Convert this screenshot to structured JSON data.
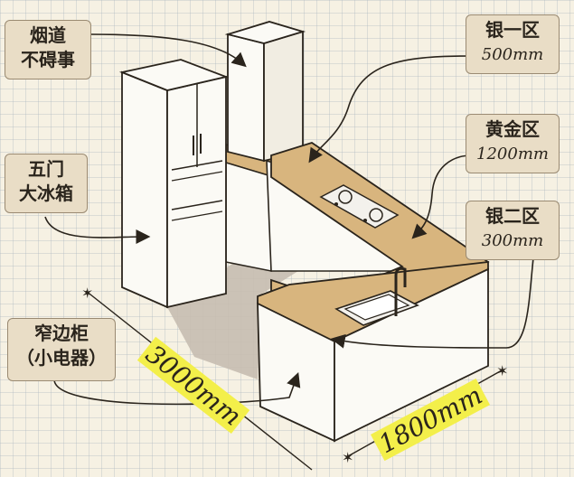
{
  "labels": {
    "chimney": {
      "line1": "烟道",
      "line2": "不碍事"
    },
    "fridge": {
      "line1": "五门",
      "line2": "大冰箱"
    },
    "cabinet": {
      "line1": "窄边柜",
      "line2": "（小电器）"
    },
    "silver1": {
      "title": "银一区",
      "value": "500mm"
    },
    "gold": {
      "title": "黄金区",
      "value": "1200mm"
    },
    "silver2": {
      "title": "银二区",
      "value": "300mm"
    }
  },
  "dimensions": {
    "long_side": "3000mm",
    "short_side": "1800mm"
  },
  "colors": {
    "countertop": "#d8b57e",
    "floor_shadow": "#c6bdb0",
    "cabinet_face": "#fbfaf5",
    "line": "#2a241c",
    "highlight": "#f3ef4a",
    "label_bg": "#e9ddc6"
  }
}
